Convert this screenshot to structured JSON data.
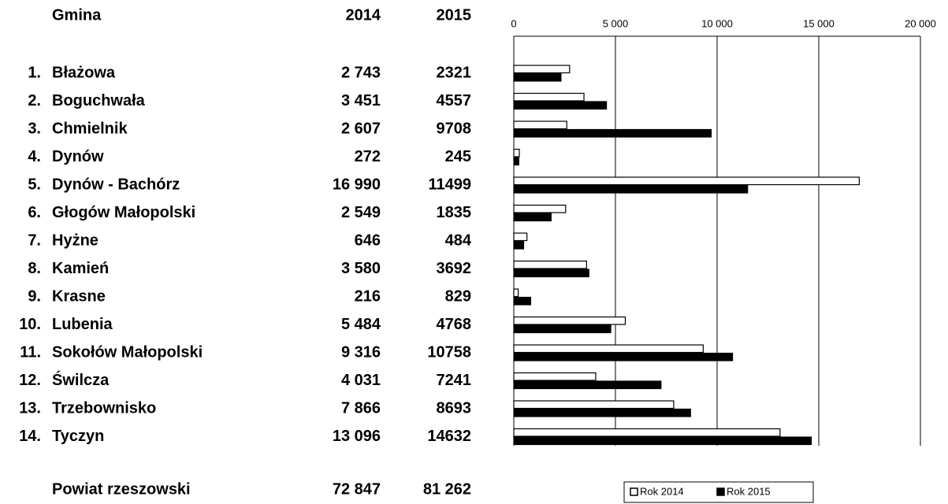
{
  "table": {
    "header": [
      "Gmina",
      "2014",
      "2015"
    ],
    "row_numbers": [
      "1.",
      "2.",
      "3.",
      "4.",
      "5.",
      "6.",
      "7.",
      "8.",
      "9.",
      "10.",
      "11.",
      "12.",
      "13.",
      "14."
    ],
    "total": {
      "name": "Powiat rzeszowski",
      "values": [
        "72 847",
        "81 262"
      ]
    }
  },
  "chart_data": {
    "type": "bar",
    "orientation": "horizontal",
    "categories": [
      "Błażowa",
      "Boguchwała",
      "Chmielnik",
      "Dynów",
      "Dynów - Bachórz",
      "Głogów Małopolski",
      "Hyżne",
      "Kamień",
      "Krasne",
      "Lubenia",
      "Sokołów Małopolski",
      "Świlcza",
      "Trzebownisko",
      "Tyczyn"
    ],
    "series": [
      {
        "name": "Rok 2014",
        "color": "#ffffff",
        "values": [
          2743,
          3451,
          2607,
          272,
          16990,
          2549,
          646,
          3580,
          216,
          5484,
          9316,
          4031,
          7866,
          13096
        ],
        "value_labels": [
          "2 743",
          "3 451",
          "2 607",
          "272",
          "16 990",
          "2 549",
          "646",
          "3 580",
          "216",
          "5 484",
          "9 316",
          "4 031",
          "7 866",
          "13 096"
        ]
      },
      {
        "name": "Rok 2015",
        "color": "#000000",
        "values": [
          2321,
          4557,
          9708,
          245,
          11499,
          1835,
          484,
          3692,
          829,
          4768,
          10758,
          7241,
          8693,
          14632
        ]
      }
    ],
    "xlim": [
      0,
      20000
    ],
    "xticks": [
      0,
      {
        "value": 5000,
        "label": "5 000"
      },
      {
        "value": 10000,
        "label": "10 000"
      },
      {
        "value": 15000,
        "label": "15 000"
      },
      {
        "value": 20000,
        "label": "20 000"
      }
    ],
    "grid": true,
    "legend": "bottom"
  }
}
